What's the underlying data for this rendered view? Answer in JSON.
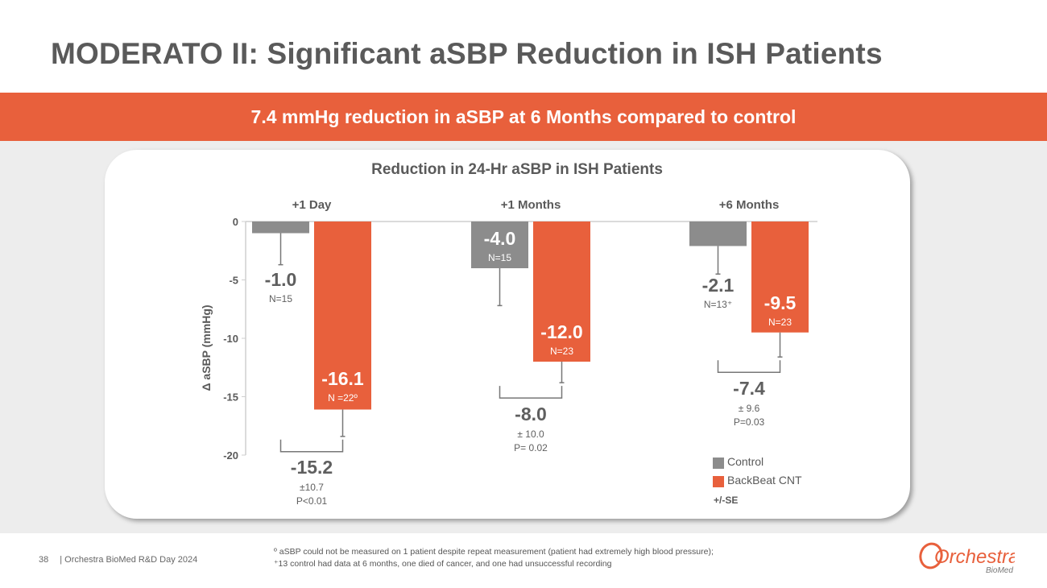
{
  "title": "MODERATO II: Significant aSBP Reduction in ISH Patients",
  "banner": "7.4 mmHg reduction in aSBP at 6 Months compared to control",
  "chart_data": {
    "type": "bar",
    "title": "Reduction in 24-Hr aSBP in ISH Patients",
    "ylabel": "Δ aSBP (mmHg)",
    "xlabel": "",
    "ylim": [
      -20,
      0
    ],
    "yticks": [
      0,
      -5,
      -10,
      -15,
      -20
    ],
    "categories": [
      "+1 Day",
      "+1 Months",
      "+6 Months"
    ],
    "series": [
      {
        "name": "Control",
        "color": "#8c8c8c",
        "values": [
          -1.0,
          -4.0,
          -2.1
        ],
        "error_low": [
          -3.7,
          -7.2,
          -4.5
        ],
        "labels": [
          "-1.0",
          "-4.0",
          "-2.1"
        ],
        "n": [
          "N=15",
          "N=15",
          "N=13⁺"
        ]
      },
      {
        "name": "BackBeat CNT",
        "color": "#e8603c",
        "values": [
          -16.1,
          -12.0,
          -9.5
        ],
        "error_low": [
          -18.4,
          -13.8,
          -11.6
        ],
        "labels": [
          "-16.1",
          "-12.0",
          "-9.5"
        ],
        "n": [
          "N =22º",
          "N=23",
          "N=23"
        ]
      }
    ],
    "differences": [
      {
        "value": "-15.2",
        "se": "±10.7",
        "p": "P<0.01"
      },
      {
        "value": "-8.0",
        "se": "± 10.0",
        "p": "P= 0.02"
      },
      {
        "value": "-7.4",
        "se": "± 9.6",
        "p": "P=0.03"
      }
    ],
    "error_note": "+/-SE",
    "legend_position": "bottom-right"
  },
  "footer": {
    "page": "38",
    "event": "| Orchestra BioMed R&D Day 2024",
    "footnote_1": "º aSBP could not be measured on 1 patient despite repeat measurement (patient had extremely high blood pressure);",
    "footnote_2": "⁺13 control had data at 6 months, one died of cancer, and one had unsuccessful recording"
  },
  "logo": {
    "name": "Orchestra",
    "sub": "BioMed"
  }
}
